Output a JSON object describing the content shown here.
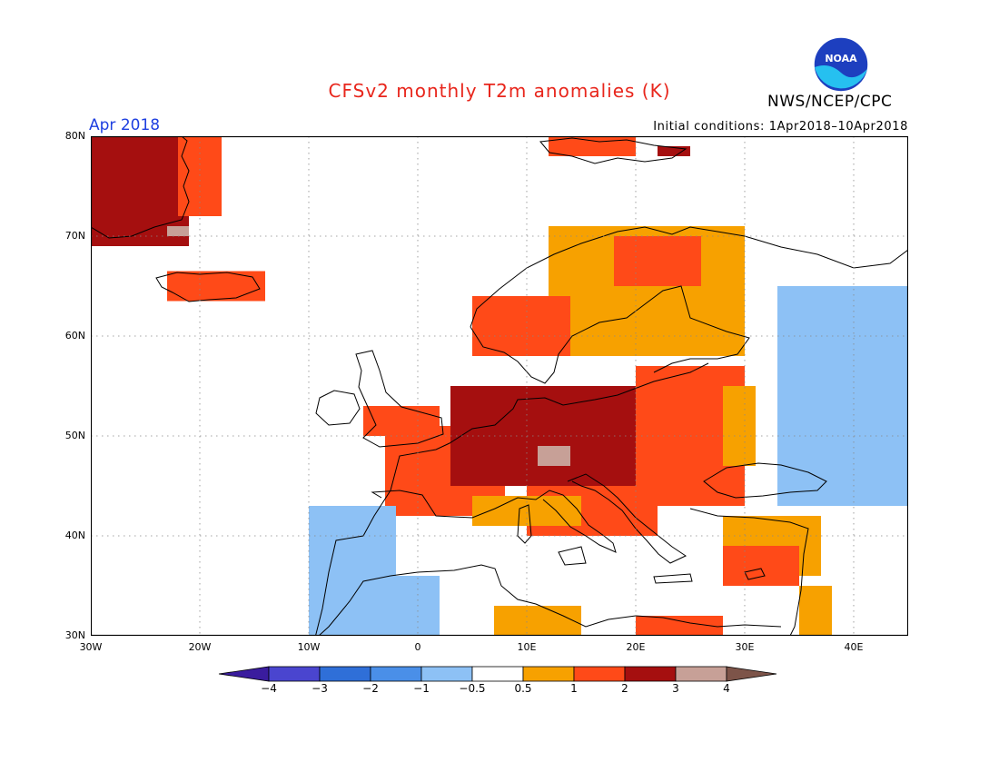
{
  "header": {
    "title": "CFSv2 monthly T2m anomalies (K)",
    "agency": "NWS/NCEP/CPC",
    "logo_text": "NOAA",
    "month": "Apr 2018",
    "initial_conditions": "Initial conditions: 1Apr2018–10Apr2018"
  },
  "axes": {
    "lat_labels": [
      "80N",
      "70N",
      "60N",
      "50N",
      "40N",
      "30N"
    ],
    "lon_labels": [
      "30W",
      "20W",
      "10W",
      "0",
      "10E",
      "20E",
      "30E",
      "40E"
    ],
    "lon_range": [
      -30,
      45
    ],
    "lat_range": [
      30,
      80
    ]
  },
  "colorbar": {
    "labels": [
      "−4",
      "−3",
      "−2",
      "−1",
      "−0.5",
      "0.5",
      "1",
      "2",
      "3",
      "4"
    ],
    "colors": [
      "#3a1c9e",
      "#4a45cf",
      "#2f6fd8",
      "#4a8fe8",
      "#8dc1f5",
      "#ffffff",
      "#f7a100",
      "#ff4a18",
      "#a50f0f",
      "#c7a097",
      "#7d5449"
    ]
  },
  "anomaly_regions": [
    {
      "level": 3,
      "lon": [
        -30,
        -21
      ],
      "lat": [
        69,
        80
      ]
    },
    {
      "level": 2,
      "lon": [
        -22,
        -18
      ],
      "lat": [
        72,
        80
      ]
    },
    {
      "level": 4,
      "lon": [
        -23,
        -21
      ],
      "lat": [
        70,
        71
      ]
    },
    {
      "level": 2,
      "lon": [
        -23,
        -14
      ],
      "lat": [
        63.5,
        66.5
      ]
    },
    {
      "level": 2,
      "lon": [
        -5,
        2
      ],
      "lat": [
        50,
        53
      ]
    },
    {
      "level": 2,
      "lon": [
        -3,
        8
      ],
      "lat": [
        42,
        51
      ]
    },
    {
      "level": 3,
      "lon": [
        3,
        23
      ],
      "lat": [
        45,
        55
      ]
    },
    {
      "level": 2,
      "lon": [
        20,
        30
      ],
      "lat": [
        43,
        57
      ]
    },
    {
      "level": 1,
      "lon": [
        28,
        31
      ],
      "lat": [
        47,
        55
      ]
    },
    {
      "level": 2,
      "lon": [
        10,
        22
      ],
      "lat": [
        40,
        45
      ]
    },
    {
      "level": 1,
      "lon": [
        5,
        15
      ],
      "lat": [
        41,
        44
      ]
    },
    {
      "level": 4,
      "lon": [
        11,
        14
      ],
      "lat": [
        47,
        49
      ]
    },
    {
      "level": 1,
      "lon": [
        12,
        30
      ],
      "lat": [
        58,
        71
      ]
    },
    {
      "level": 2,
      "lon": [
        5,
        14
      ],
      "lat": [
        58,
        64
      ]
    },
    {
      "level": 2,
      "lon": [
        18,
        26
      ],
      "lat": [
        65,
        70
      ]
    },
    {
      "level": 2,
      "lon": [
        12,
        20
      ],
      "lat": [
        78,
        80
      ]
    },
    {
      "level": 3,
      "lon": [
        22,
        25
      ],
      "lat": [
        78,
        79
      ]
    },
    {
      "level": 1,
      "lon": [
        28,
        37
      ],
      "lat": [
        36,
        42
      ]
    },
    {
      "level": 2,
      "lon": [
        28,
        35
      ],
      "lat": [
        35,
        39
      ]
    },
    {
      "level": 1,
      "lon": [
        7,
        15
      ],
      "lat": [
        30,
        33
      ]
    },
    {
      "level": 2,
      "lon": [
        20,
        28
      ],
      "lat": [
        30,
        32
      ]
    },
    {
      "level": 1,
      "lon": [
        35,
        38
      ],
      "lat": [
        30,
        35
      ]
    },
    {
      "level": -1,
      "lon": [
        -10,
        -2
      ],
      "lat": [
        36,
        43
      ]
    },
    {
      "level": -1,
      "lon": [
        -10,
        2
      ],
      "lat": [
        30,
        36
      ]
    },
    {
      "level": -0.5,
      "lon": [
        33,
        45
      ],
      "lat": [
        43,
        65
      ]
    },
    {
      "level": -1,
      "lon": [
        37,
        45
      ],
      "lat": [
        46,
        62
      ]
    }
  ]
}
